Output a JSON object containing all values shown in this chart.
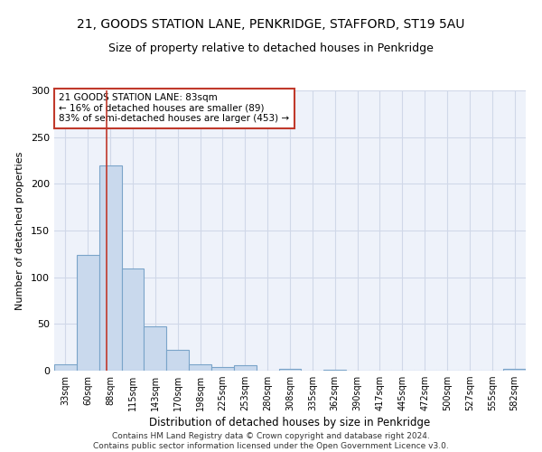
{
  "title": "21, GOODS STATION LANE, PENKRIDGE, STAFFORD, ST19 5AU",
  "subtitle": "Size of property relative to detached houses in Penkridge",
  "xlabel": "Distribution of detached houses by size in Penkridge",
  "ylabel": "Number of detached properties",
  "categories": [
    "33sqm",
    "60sqm",
    "88sqm",
    "115sqm",
    "143sqm",
    "170sqm",
    "198sqm",
    "225sqm",
    "253sqm",
    "280sqm",
    "308sqm",
    "335sqm",
    "362sqm",
    "390sqm",
    "417sqm",
    "445sqm",
    "472sqm",
    "500sqm",
    "527sqm",
    "555sqm",
    "582sqm"
  ],
  "values": [
    7,
    124,
    220,
    109,
    47,
    22,
    7,
    4,
    6,
    0,
    2,
    0,
    1,
    0,
    0,
    0,
    0,
    0,
    0,
    0,
    2
  ],
  "bar_color": "#c9d9ed",
  "bar_edge_color": "#7aa4c9",
  "bar_linewidth": 0.8,
  "vline_x": 1.85,
  "vline_color": "#c0392b",
  "annotation_text": "21 GOODS STATION LANE: 83sqm\n← 16% of detached houses are smaller (89)\n83% of semi-detached houses are larger (453) →",
  "annotation_box_color": "white",
  "annotation_box_edge": "#c0392b",
  "annotation_fontsize": 7.5,
  "ylim": [
    0,
    300
  ],
  "yticks": [
    0,
    50,
    100,
    150,
    200,
    250,
    300
  ],
  "grid_color": "#d0d8e8",
  "bg_color": "#eef2fa",
  "title_fontsize": 10,
  "subtitle_fontsize": 9,
  "xlabel_fontsize": 8.5,
  "ylabel_fontsize": 8,
  "footer": "Contains HM Land Registry data © Crown copyright and database right 2024.\nContains public sector information licensed under the Open Government Licence v3.0.",
  "footer_fontsize": 6.5
}
